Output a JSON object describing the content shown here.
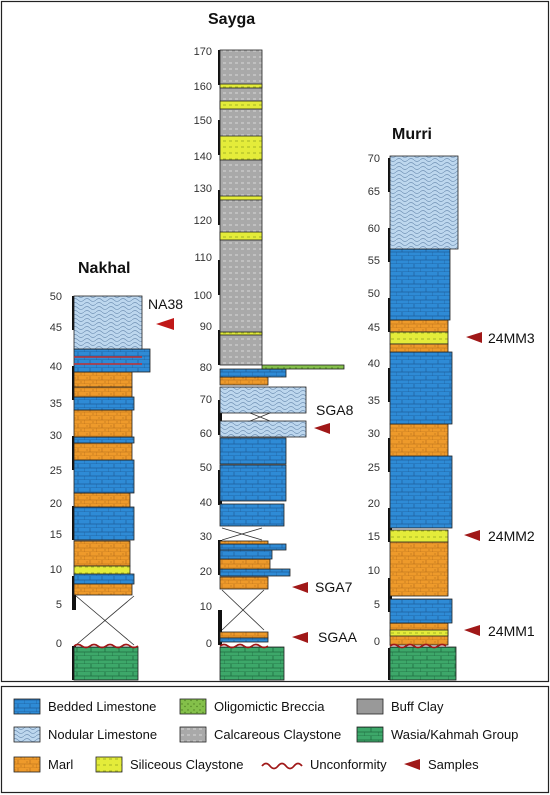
{
  "sections": {
    "nakhal": {
      "title": "Nakhal",
      "ticks": [
        "0",
        "5",
        "10",
        "15",
        "20",
        "25",
        "30",
        "35",
        "40",
        "45",
        "50"
      ],
      "samples": [
        "NA38"
      ]
    },
    "sayga": {
      "title": "Sayga",
      "ticks": [
        "0",
        "10",
        "20",
        "30",
        "40",
        "50",
        "60",
        "70",
        "80",
        "90",
        "100",
        "110",
        "120",
        "130",
        "140",
        "150",
        "160",
        "170"
      ],
      "samples": [
        "SGA8",
        "SGA7",
        "SGAA"
      ]
    },
    "murri": {
      "title": "Murri",
      "ticks": [
        "0",
        "5",
        "10",
        "15",
        "20",
        "25",
        "30",
        "35",
        "40",
        "45",
        "50",
        "55",
        "60",
        "65",
        "70"
      ],
      "samples": [
        "24MM3",
        "24MM2",
        "24MM1"
      ]
    }
  },
  "legend": [
    {
      "name": "legend-bedded-limestone",
      "label": "Bedded Limestone"
    },
    {
      "name": "legend-oligomictic-breccia",
      "label": "Oligomictic Breccia"
    },
    {
      "name": "legend-buff-clay",
      "label": "Buff Clay"
    },
    {
      "name": "legend-nodular-limestone",
      "label": "Nodular Limestone"
    },
    {
      "name": "legend-calcareous-claystone",
      "label": "Calcareous Claystone"
    },
    {
      "name": "legend-wasia-kahmah-group",
      "label": "Wasia/Kahmah Group"
    },
    {
      "name": "legend-marl",
      "label": "Marl"
    },
    {
      "name": "legend-siliceous-claystone",
      "label": "Siliceous Claystone"
    },
    {
      "name": "legend-unconformity",
      "label": "Unconformity"
    },
    {
      "name": "legend-samples",
      "label": "Samples"
    }
  ],
  "colors": {
    "bedded_limestone": "#2E8BD6",
    "nodular_limestone": "#BDD7EE",
    "marl": "#EE9A2B",
    "siliceous_claystone": "#E4EC3A",
    "calcareous_claystone": "#A9A9A9",
    "buff_clay": "#999999",
    "oligomictic_breccia": "#84C04A",
    "wasia_kahmah": "#3DA86A",
    "sample_marker": "#A01818",
    "unconformity": "#A01818"
  }
}
